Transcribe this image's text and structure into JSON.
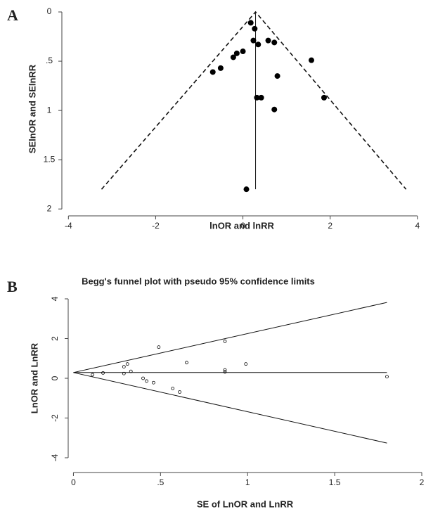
{
  "panels": [
    "A",
    "B"
  ],
  "chart_data": [
    {
      "type": "scatter",
      "x_label": "lnOR and lnRR",
      "y_label": "SElnOR and SElnRR",
      "x": [
        0.18,
        0.27,
        0.24,
        0.35,
        0.58,
        0.72,
        1.57,
        0.0,
        -0.14,
        -0.22,
        -0.51,
        -0.69,
        0.79,
        0.32,
        0.42,
        1.86,
        0.72,
        0.08
      ],
      "y": [
        0.11,
        0.17,
        0.29,
        0.33,
        0.29,
        0.31,
        0.49,
        0.4,
        0.42,
        0.46,
        0.57,
        0.61,
        0.65,
        0.87,
        0.87,
        0.87,
        0.99,
        1.8
      ],
      "marker": "filled",
      "color": "#000000",
      "lines": [
        {
          "x": [
            -3.24,
            0.29,
            3.74
          ],
          "y": [
            1.8,
            0,
            1.8
          ],
          "style": "dashed"
        },
        {
          "x": [
            0.29,
            0.29
          ],
          "y": [
            0,
            1.8
          ],
          "style": "solid"
        }
      ],
      "xlim": [
        -4.15,
        4.1
      ],
      "xticks": [
        -4,
        -2,
        0,
        2,
        4
      ],
      "ylim": [
        -0.05,
        2.02
      ],
      "yticks": [
        0,
        {
          "value": 0.5,
          "label": ".5"
        },
        1,
        1.5,
        2
      ],
      "y_reversed": true
    },
    {
      "type": "scatter",
      "title": "Begg's funnel plot with pseudo 95% confidence limits",
      "x_label": "SE of LnOR and LnRR",
      "y_label": "LnOR and LnRR",
      "x": [
        0.11,
        0.17,
        0.29,
        0.33,
        0.29,
        0.31,
        0.49,
        0.4,
        0.42,
        0.46,
        0.57,
        0.61,
        0.65,
        0.87,
        0.87,
        0.87,
        0.99,
        1.8
      ],
      "y": [
        0.18,
        0.27,
        0.24,
        0.35,
        0.58,
        0.72,
        1.57,
        0.0,
        -0.14,
        -0.22,
        -0.51,
        -0.69,
        0.79,
        0.32,
        0.42,
        1.86,
        0.72,
        0.08
      ],
      "marker": "hollow",
      "color": "#000000",
      "lines": [
        {
          "x": [
            0,
            1.8
          ],
          "y": [
            0.29,
            3.82
          ],
          "style": "solid"
        },
        {
          "x": [
            0,
            1.8
          ],
          "y": [
            0.29,
            0.29
          ],
          "style": "solid"
        },
        {
          "x": [
            0,
            1.8
          ],
          "y": [
            0.29,
            -3.26
          ],
          "style": "solid"
        }
      ],
      "xlim": [
        -0.03,
        2.0
      ],
      "xticks": [
        0,
        {
          "value": 0.5,
          "label": ".5"
        },
        1,
        1.5,
        2
      ],
      "ylim": [
        -4.46,
        4.46
      ],
      "yticks": [
        -4,
        -2,
        0,
        2,
        4
      ],
      "y_reversed": false
    }
  ]
}
